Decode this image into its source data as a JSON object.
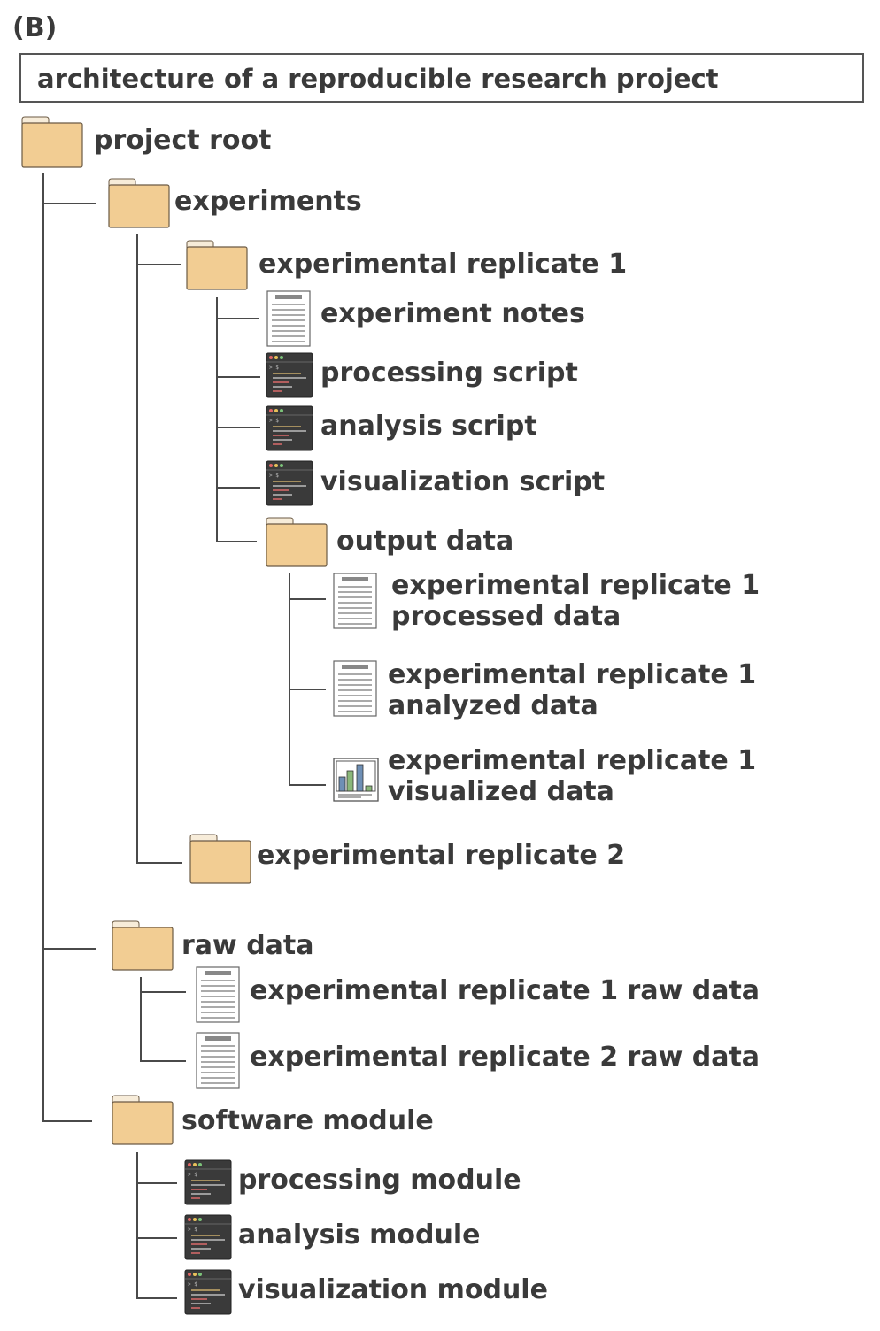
{
  "panel_label": "(B)",
  "title": "architecture of a reproducible research project",
  "nodes": {
    "root": "project root",
    "experiments": "experiments",
    "rep1": "experimental replicate 1",
    "notes": "experiment notes",
    "proc_script": "processing script",
    "analysis_script": "analysis script",
    "vis_script": "visualization script",
    "output": "output data",
    "processed_1": "experimental replicate 1",
    "processed_2": "processed data",
    "analyzed_1": "experimental replicate 1",
    "analyzed_2": "analyzed data",
    "visualized_1": "experimental replicate 1",
    "visualized_2": "visualized data",
    "rep2": "experimental replicate 2",
    "raw": "raw data",
    "raw1": "experimental replicate 1 raw data",
    "raw2": "experimental replicate 2 raw data",
    "software": "software module",
    "proc_module": "processing module",
    "analysis_module": "analysis module",
    "vis_module": "visualization module"
  },
  "icons": {
    "folder": "folder-icon",
    "document": "document-icon",
    "script": "terminal-script-icon",
    "chart": "bar-chart-icon"
  },
  "colors": {
    "folder_fill": "#f2cd93",
    "folder_stroke": "#6b5a44",
    "terminal_bg": "#3a3a3a",
    "line": "#4a4a4a"
  }
}
